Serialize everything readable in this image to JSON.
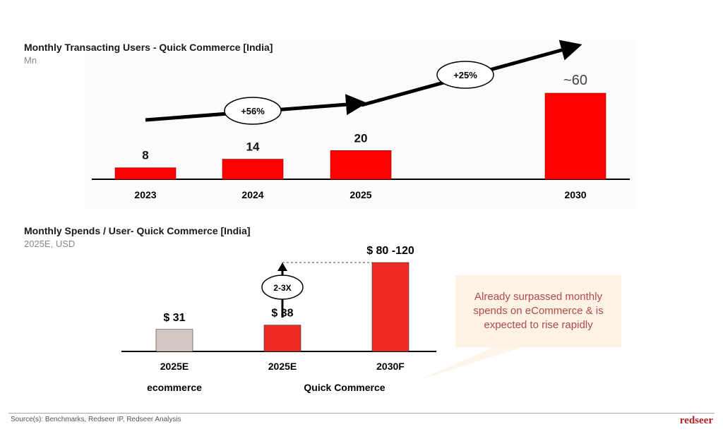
{
  "chart_data": [
    {
      "type": "bar",
      "title": "Monthly Transacting Users - Quick Commerce [India]",
      "subtitle": "Mn",
      "categories": [
        "2023",
        "2024",
        "2025",
        "2030"
      ],
      "values": [
        8,
        14,
        20,
        60
      ],
      "data_labels": [
        "8",
        "14",
        "20",
        "~60"
      ],
      "bar_color": "#ff0000",
      "annotations": [
        {
          "label": "+56%",
          "from": "2023",
          "to": "2025"
        },
        {
          "label": "+25%",
          "from": "2025",
          "to": "2030"
        }
      ],
      "xlabel": "",
      "ylabel": "",
      "ylim": [
        0,
        65
      ],
      "grid": false
    },
    {
      "type": "bar",
      "title": "Monthly Spends / User- Quick Commerce [India]",
      "subtitle": "2025E, USD",
      "categories": [
        "2025E",
        "2025E",
        "2030F"
      ],
      "groups": [
        {
          "name": "ecommerce",
          "categories": [
            "2025E"
          ]
        },
        {
          "name": "Quick Commerce",
          "categories": [
            "2025E",
            "2030F"
          ]
        }
      ],
      "values": [
        31,
        38,
        100
      ],
      "value_range_2030F": [
        80,
        120
      ],
      "data_labels": [
        "$ 31",
        "$ 38",
        "$ 80 -120"
      ],
      "bar_colors": [
        "#d4c6c0",
        "#ee2a24",
        "#ee2a24"
      ],
      "annotations": [
        {
          "label": "2-3X",
          "from": "2025E",
          "to": "2030F"
        }
      ],
      "xlabel": "",
      "ylabel": "",
      "ylim": [
        0,
        110
      ],
      "grid": false
    }
  ],
  "callout": {
    "text": "Already surpassed monthly spends on eCommerce & is expected to rise rapidly"
  },
  "footer": {
    "source": "Source(s): Benchmarks, Redseer IP, Redseer Analysis",
    "logo": "redseer"
  }
}
